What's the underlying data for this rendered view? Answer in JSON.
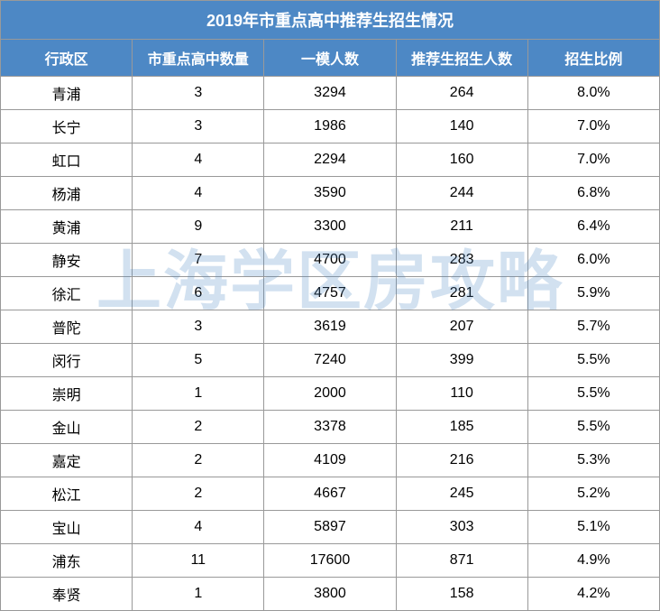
{
  "title": "2019年市重点高中推荐生招生情况",
  "watermark": "上海学区房攻略",
  "columns": [
    "行政区",
    "市重点高中数量",
    "一模人数",
    "推荐生招生人数",
    "招生比例"
  ],
  "rows": [
    {
      "district": "青浦",
      "school_count": 3,
      "exam_count": 3294,
      "enroll_count": 264,
      "ratio": "8.0%"
    },
    {
      "district": "长宁",
      "school_count": 3,
      "exam_count": 1986,
      "enroll_count": 140,
      "ratio": "7.0%"
    },
    {
      "district": "虹口",
      "school_count": 4,
      "exam_count": 2294,
      "enroll_count": 160,
      "ratio": "7.0%"
    },
    {
      "district": "杨浦",
      "school_count": 4,
      "exam_count": 3590,
      "enroll_count": 244,
      "ratio": "6.8%"
    },
    {
      "district": "黄浦",
      "school_count": 9,
      "exam_count": 3300,
      "enroll_count": 211,
      "ratio": "6.4%"
    },
    {
      "district": "静安",
      "school_count": 7,
      "exam_count": 4700,
      "enroll_count": 283,
      "ratio": "6.0%"
    },
    {
      "district": "徐汇",
      "school_count": 6,
      "exam_count": 4757,
      "enroll_count": 281,
      "ratio": "5.9%"
    },
    {
      "district": "普陀",
      "school_count": 3,
      "exam_count": 3619,
      "enroll_count": 207,
      "ratio": "5.7%"
    },
    {
      "district": "闵行",
      "school_count": 5,
      "exam_count": 7240,
      "enroll_count": 399,
      "ratio": "5.5%"
    },
    {
      "district": "崇明",
      "school_count": 1,
      "exam_count": 2000,
      "enroll_count": 110,
      "ratio": "5.5%"
    },
    {
      "district": "金山",
      "school_count": 2,
      "exam_count": 3378,
      "enroll_count": 185,
      "ratio": "5.5%"
    },
    {
      "district": "嘉定",
      "school_count": 2,
      "exam_count": 4109,
      "enroll_count": 216,
      "ratio": "5.3%"
    },
    {
      "district": "松江",
      "school_count": 2,
      "exam_count": 4667,
      "enroll_count": 245,
      "ratio": "5.2%"
    },
    {
      "district": "宝山",
      "school_count": 4,
      "exam_count": 5897,
      "enroll_count": 303,
      "ratio": "5.1%"
    },
    {
      "district": "浦东",
      "school_count": 11,
      "exam_count": 17600,
      "enroll_count": 871,
      "ratio": "4.9%"
    },
    {
      "district": "奉贤",
      "school_count": 1,
      "exam_count": 3800,
      "enroll_count": 158,
      "ratio": "4.2%"
    }
  ],
  "colors": {
    "header_bg": "#4d88c5",
    "header_text": "#ffffff",
    "cell_bg": "#ffffff",
    "cell_text": "#000000",
    "border": "#999999",
    "watermark": "rgba(77, 136, 197, 0.25)"
  }
}
